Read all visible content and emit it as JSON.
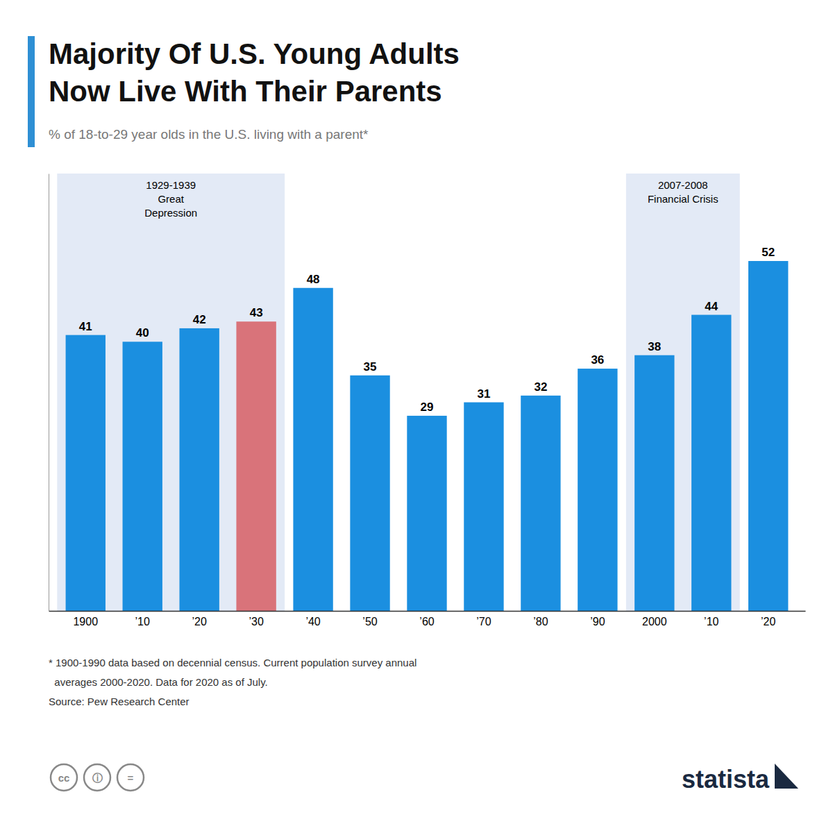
{
  "chart_data": {
    "type": "bar",
    "title": "Majority Of U.S. Young Adults\nNow Live With Their Parents",
    "subtitle": "% of 18-to-29 year olds in the U.S. living with a parent*",
    "categories": [
      "1900",
      "’10",
      "’20",
      "’30",
      "’40",
      "’50",
      "’60",
      "’70",
      "’80",
      "’90",
      "2000",
      "’10",
      "’20"
    ],
    "values": [
      41,
      40,
      42,
      43,
      48,
      35,
      29,
      31,
      32,
      36,
      38,
      44,
      52
    ],
    "colors": [
      "#1b8fe0",
      "#1b8fe0",
      "#1b8fe0",
      "#d9737a",
      "#1b8fe0",
      "#1b8fe0",
      "#1b8fe0",
      "#1b8fe0",
      "#1b8fe0",
      "#1b8fe0",
      "#1b8fe0",
      "#1b8fe0",
      "#1b8fe0"
    ],
    "ylim": [
      0,
      65
    ],
    "grid": false,
    "data_labels": true,
    "tick_labels": "x",
    "annotations": [
      "1929-1939\nGreat\nDepression",
      "2007-2008\nFinancial Crisis"
    ],
    "footnotes": [
      "* 1900-1990 data based on decennial census. Current population survey annual",
      "  averages 2000-2020. Data for 2020 as of July.",
      "Source: Pew Research Center"
    ],
    "branding": "statista",
    "license_icons": [
      "cc",
      "ⓘ",
      "="
    ]
  }
}
